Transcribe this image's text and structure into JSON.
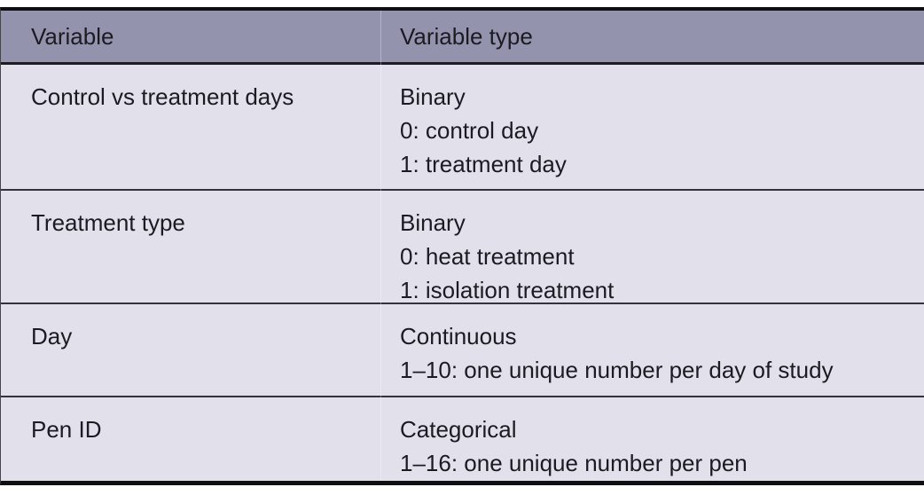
{
  "colors": {
    "header_bg": "#9393ae",
    "row_bg": "#e2e0ea",
    "border_heavy": "#0f0f13",
    "separator": "#33333d",
    "text": "#1b1b21"
  },
  "table": {
    "header": {
      "col1": "Variable",
      "col2": "Variable type"
    },
    "rows": [
      {
        "variable": "Control vs treatment days",
        "type_lines": [
          "Binary",
          "0: control day",
          "1: treatment day"
        ]
      },
      {
        "variable": "Treatment type",
        "type_lines": [
          "Binary",
          "0: heat treatment",
          "1: isolation treatment"
        ]
      },
      {
        "variable": "Day",
        "type_lines": [
          "Continuous",
          "1–10: one unique number per day of study"
        ]
      },
      {
        "variable": "Pen ID",
        "type_lines": [
          "Categorical",
          "1–16: one unique number per pen"
        ]
      }
    ]
  }
}
